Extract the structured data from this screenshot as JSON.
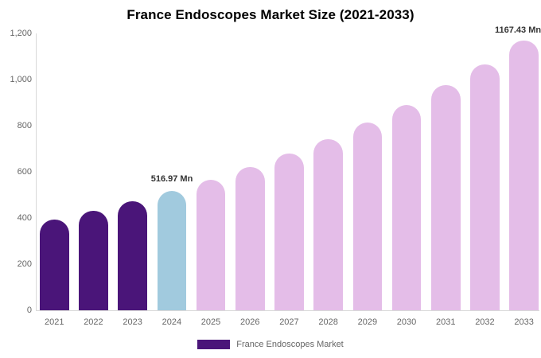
{
  "title": "France Endoscopes Market Size (2021-2033)",
  "annotations": {
    "highlight_2024": "516.97 Mn",
    "highlight_2033": "1167.43 Mn"
  },
  "legend": {
    "label": "France Endoscopes Market"
  },
  "colors": {
    "historical_bar": "#4a1579",
    "highlight_bar": "#a1cade",
    "forecast_bar": "#e4bde8",
    "axis_text": "#666666",
    "axis_line": "#d9d9d9",
    "annotation_text": "#333333",
    "title_text": "#000000"
  },
  "chart_data": {
    "type": "bar",
    "title": "France Endoscopes Market Size (2021-2033)",
    "unit": "Mn",
    "categories": [
      "2021",
      "2022",
      "2023",
      "2024",
      "2025",
      "2026",
      "2027",
      "2028",
      "2029",
      "2030",
      "2031",
      "2032",
      "2033"
    ],
    "values": [
      393.9,
      431.3,
      472.2,
      516.97,
      566.0,
      619.6,
      678.3,
      742.6,
      813.0,
      890.1,
      974.4,
      1066.8,
      1167.43
    ],
    "labeled_values": {
      "2024": "516.97 Mn",
      "2033": "1167.43 Mn"
    },
    "bar_segments": {
      "historical_years": [
        "2021",
        "2022",
        "2023"
      ],
      "highlight_years": [
        "2024"
      ],
      "forecast_years": [
        "2025",
        "2026",
        "2027",
        "2028",
        "2029",
        "2030",
        "2031",
        "2032",
        "2033"
      ]
    },
    "xlabel": "",
    "ylabel": "",
    "ylim": [
      0,
      1200
    ],
    "ytick_values": [
      0,
      200,
      400,
      600,
      800,
      1000,
      1200
    ],
    "ytick_labels": [
      "0",
      "200",
      "400",
      "600",
      "800",
      "1,000",
      "1,200"
    ],
    "grid": false,
    "legend": [
      "France Endoscopes Market"
    ],
    "legend_position": "bottom"
  }
}
